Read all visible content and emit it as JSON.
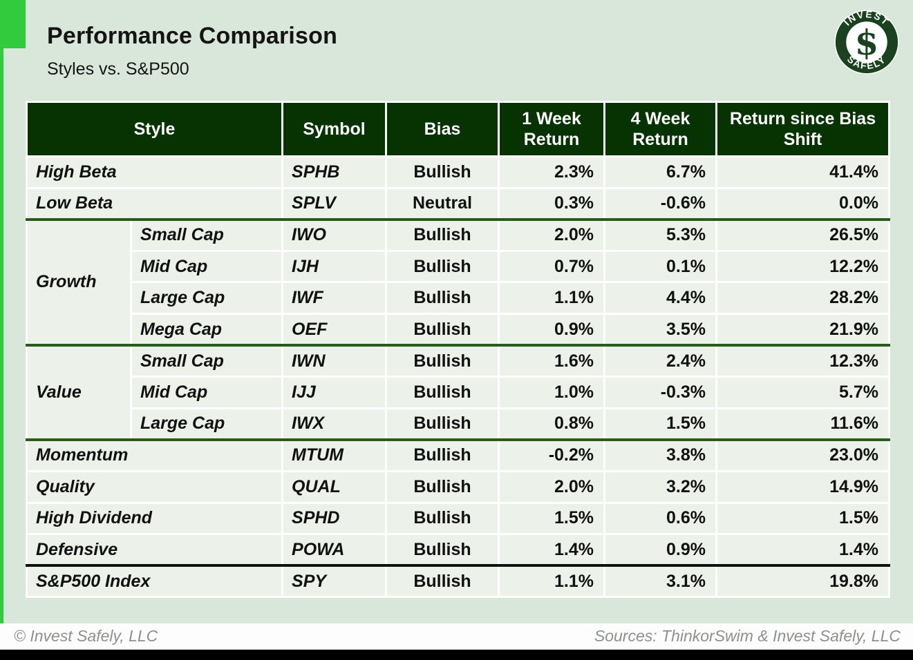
{
  "page": {
    "title": "Performance Comparison",
    "subtitle": "Styles vs. S&P500"
  },
  "logo": {
    "arc_top": "INVEST",
    "arc_bottom": "SAFELY",
    "monogram": "$"
  },
  "table": {
    "headers": {
      "style": "Style",
      "symbol": "Symbol",
      "bias": "Bias",
      "week1": "1 Week Return",
      "week4": "4 Week Return",
      "since": "Return since Bias Shift"
    },
    "rows": [
      {
        "style": "High Beta",
        "span": 2,
        "symbol": "SPHB",
        "bias": "Bullish",
        "bias_tone": "pos",
        "w1": "2.3%",
        "w1_tone": "pos",
        "w4": "6.7%",
        "w4_tone": "pos",
        "since": "41.4%",
        "since_tone": "pos",
        "sep": null
      },
      {
        "style": "Low Beta",
        "span": 2,
        "symbol": "SPLV",
        "bias": "Neutral",
        "bias_tone": "neutral",
        "w1": "0.3%",
        "w1_tone": "pos",
        "w4": "-0.6%",
        "w4_tone": "neg",
        "since": "0.0%",
        "since_tone": "neg",
        "sep": null
      },
      {
        "group": "Growth",
        "group_span": 4,
        "style": "Small Cap",
        "symbol": "IWO",
        "bias": "Bullish",
        "bias_tone": "pos",
        "w1": "2.0%",
        "w1_tone": "pos",
        "w4": "5.3%",
        "w4_tone": "pos",
        "since": "26.5%",
        "since_tone": "pos",
        "sep": "green"
      },
      {
        "style": "Mid Cap",
        "in_group": true,
        "symbol": "IJH",
        "bias": "Bullish",
        "bias_tone": "pos",
        "w1": "0.7%",
        "w1_tone": "pos",
        "w4": "0.1%",
        "w4_tone": "pos",
        "since": "12.2%",
        "since_tone": "pos",
        "sep": null
      },
      {
        "style": "Large Cap",
        "in_group": true,
        "symbol": "IWF",
        "bias": "Bullish",
        "bias_tone": "pos",
        "w1": "1.1%",
        "w1_tone": "pos",
        "w4": "4.4%",
        "w4_tone": "pos",
        "since": "28.2%",
        "since_tone": "pos",
        "sep": null
      },
      {
        "style": "Mega Cap",
        "in_group": true,
        "symbol": "OEF",
        "bias": "Bullish",
        "bias_tone": "pos",
        "w1": "0.9%",
        "w1_tone": "pos",
        "w4": "3.5%",
        "w4_tone": "pos",
        "since": "21.9%",
        "since_tone": "pos",
        "sep": null
      },
      {
        "group": "Value",
        "group_span": 3,
        "style": "Small Cap",
        "symbol": "IWN",
        "bias": "Bullish",
        "bias_tone": "pos",
        "w1": "1.6%",
        "w1_tone": "pos",
        "w4": "2.4%",
        "w4_tone": "pos",
        "since": "12.3%",
        "since_tone": "pos",
        "sep": "green"
      },
      {
        "style": "Mid Cap",
        "in_group": true,
        "symbol": "IJJ",
        "bias": "Bullish",
        "bias_tone": "pos",
        "w1": "1.0%",
        "w1_tone": "pos",
        "w4": "-0.3%",
        "w4_tone": "neg",
        "since": "5.7%",
        "since_tone": "pos",
        "sep": null
      },
      {
        "style": "Large Cap",
        "in_group": true,
        "symbol": "IWX",
        "bias": "Bullish",
        "bias_tone": "pos",
        "w1": "0.8%",
        "w1_tone": "pos",
        "w4": "1.5%",
        "w4_tone": "pos",
        "since": "11.6%",
        "since_tone": "pos",
        "sep": null
      },
      {
        "style": "Momentum",
        "span": 2,
        "symbol": "MTUM",
        "bias": "Bullish",
        "bias_tone": "pos",
        "w1": "-0.2%",
        "w1_tone": "neg",
        "w4": "3.8%",
        "w4_tone": "pos",
        "since": "23.0%",
        "since_tone": "pos",
        "sep": "green"
      },
      {
        "style": "Quality",
        "span": 2,
        "symbol": "QUAL",
        "bias": "Bullish",
        "bias_tone": "pos",
        "w1": "2.0%",
        "w1_tone": "pos",
        "w4": "3.2%",
        "w4_tone": "pos",
        "since": "14.9%",
        "since_tone": "pos",
        "sep": null
      },
      {
        "style": "High Dividend",
        "span": 2,
        "symbol": "SPHD",
        "bias": "Bullish",
        "bias_tone": "pos",
        "w1": "1.5%",
        "w1_tone": "pos",
        "w4": "0.6%",
        "w4_tone": "pos",
        "since": "1.5%",
        "since_tone": "pos",
        "sep": null
      },
      {
        "style": "Defensive",
        "span": 2,
        "symbol": "POWA",
        "bias": "Bullish",
        "bias_tone": "pos",
        "w1": "1.4%",
        "w1_tone": "pos",
        "w4": "0.9%",
        "w4_tone": "pos",
        "since": "1.4%",
        "since_tone": "pos",
        "sep": null
      },
      {
        "style": "S&P500 Index",
        "span": 2,
        "symbol": "SPY",
        "bias": "Bullish",
        "bias_tone": "pos",
        "w1": "1.1%",
        "w1_tone": "pos",
        "w4": "3.1%",
        "w4_tone": "pos",
        "since": "19.8%",
        "since_tone": "pos",
        "sep": "black"
      }
    ]
  },
  "footer": {
    "copyright": "© Invest Safely, LLC",
    "sources": "Sources: ThinkorSwim & Invest Safely, LLC"
  },
  "colors": {
    "background": "#d9e6da",
    "accent_green": "#33cb3e",
    "header_green": "#063301",
    "positive_green": "#187a18",
    "negative_red": "#fb0000",
    "neutral_gray": "#9a9a9a",
    "separator_green": "#2a5a1a",
    "separator_black": "#111111"
  }
}
